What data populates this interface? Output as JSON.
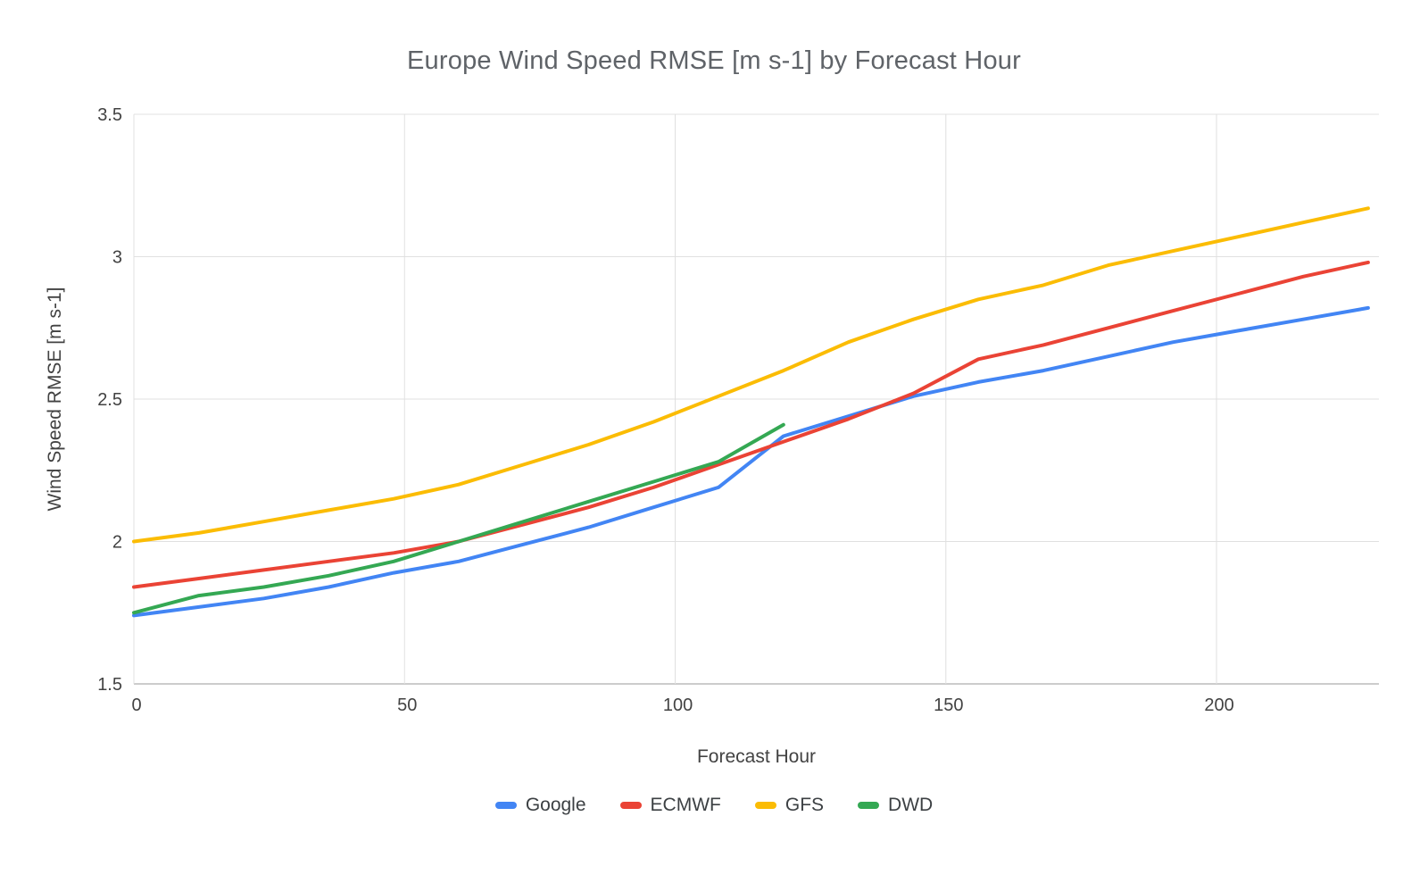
{
  "chart": {
    "title": "Europe Wind Speed RMSE [m s-1] by Forecast Hour",
    "xlabel": "Forecast Hour",
    "ylabel": "Wind Speed RMSE [m s-1]"
  },
  "chart_data": {
    "type": "line",
    "title": "Europe Wind Speed RMSE [m s-1] by Forecast Hour",
    "xlabel": "Forecast Hour",
    "ylabel": "Wind Speed RMSE [m s-1]",
    "xlim": [
      0,
      230
    ],
    "ylim": [
      1.5,
      3.5
    ],
    "xticks": [
      0,
      50,
      100,
      150,
      200
    ],
    "yticks": [
      1.5,
      2,
      2.5,
      3,
      3.5
    ],
    "grid": true,
    "legend_position": "bottom",
    "x": [
      0,
      12,
      24,
      36,
      48,
      60,
      72,
      84,
      96,
      108,
      120,
      132,
      144,
      156,
      168,
      180,
      192,
      204,
      216,
      228
    ],
    "series": [
      {
        "name": "Google",
        "color": "#4285F4",
        "values": [
          1.74,
          1.77,
          1.8,
          1.84,
          1.89,
          1.93,
          1.99,
          2.05,
          2.12,
          2.19,
          2.37,
          2.44,
          2.51,
          2.56,
          2.6,
          2.65,
          2.7,
          2.74,
          2.78,
          2.82
        ]
      },
      {
        "name": "ECMWF",
        "color": "#EA4335",
        "values": [
          1.84,
          1.87,
          1.9,
          1.93,
          1.96,
          2.0,
          2.06,
          2.12,
          2.19,
          2.27,
          2.35,
          2.43,
          2.52,
          2.64,
          2.69,
          2.75,
          2.81,
          2.87,
          2.93,
          2.98
        ]
      },
      {
        "name": "GFS",
        "color": "#FBBC04",
        "values": [
          2.0,
          2.03,
          2.07,
          2.11,
          2.15,
          2.2,
          2.27,
          2.34,
          2.42,
          2.51,
          2.6,
          2.7,
          2.78,
          2.85,
          2.9,
          2.97,
          3.02,
          3.07,
          3.12,
          3.17
        ]
      },
      {
        "name": "DWD",
        "color": "#34A853",
        "values": [
          1.75,
          1.81,
          1.84,
          1.88,
          1.93,
          2.0,
          2.07,
          2.14,
          2.21,
          2.28,
          2.41
        ]
      }
    ],
    "gridline_color": "#e0e0e0",
    "baseline_color": "#cccccc",
    "line_width": 4
  }
}
